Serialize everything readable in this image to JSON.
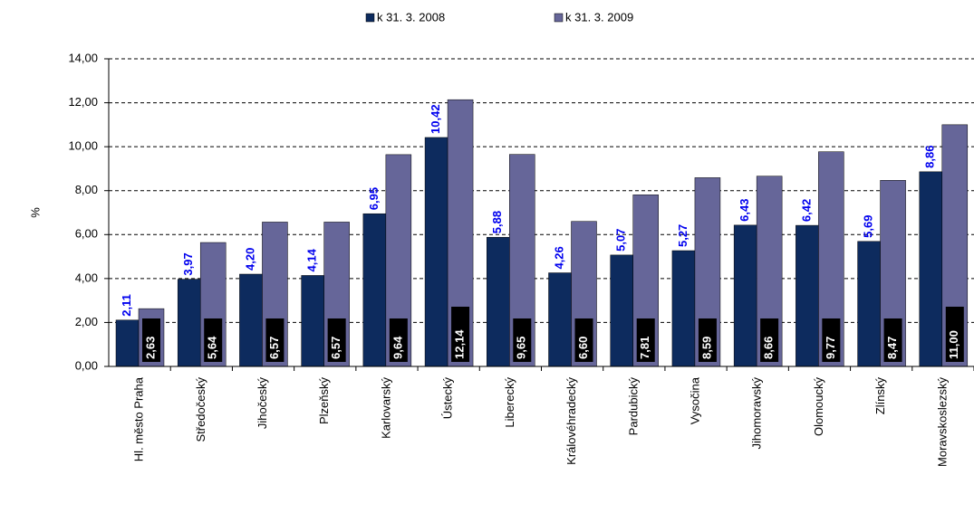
{
  "chart_data": {
    "type": "bar",
    "y_label": "%",
    "categories": [
      "Hl. město Praha",
      "Středočeský",
      "Jihočeský",
      "Plzeňský",
      "Karlovarský",
      "Ústecký",
      "Liberecký",
      "Královéhradecký",
      "Pardubický",
      "Vysočina",
      "Jihomoravský",
      "Olomoucký",
      "Zlínský",
      "Moravskoslezský"
    ],
    "series": [
      {
        "name": "k 31. 3. 2008",
        "color": "#0d2b5e",
        "values": [
          2.11,
          3.97,
          4.2,
          4.14,
          6.95,
          10.42,
          5.88,
          4.26,
          5.07,
          5.27,
          6.43,
          6.42,
          5.69,
          8.86
        ],
        "value_labels": [
          "2,11",
          "3,97",
          "4,20",
          "4,14",
          "6,95",
          "10,42",
          "5,88",
          "4,26",
          "5,07",
          "5,27",
          "6,43",
          "6,42",
          "5,69",
          "8,86"
        ]
      },
      {
        "name": "k 31. 3. 2009",
        "color": "#666699",
        "values": [
          2.63,
          5.64,
          6.57,
          6.57,
          9.64,
          12.14,
          9.65,
          6.6,
          7.81,
          8.59,
          8.66,
          9.77,
          8.47,
          11.0
        ],
        "value_labels": [
          "2,63",
          "5,64",
          "6,57",
          "6,57",
          "9,64",
          "12,14",
          "9,65",
          "6,60",
          "7,81",
          "8,59",
          "8,66",
          "9,77",
          "8,47",
          "11,00"
        ]
      }
    ],
    "ylim": [
      0,
      14
    ],
    "yticks": [
      {
        "value": 0,
        "label": "0,00"
      },
      {
        "value": 2,
        "label": "2,00"
      },
      {
        "value": 4,
        "label": "4,00"
      },
      {
        "value": 6,
        "label": "6,00"
      },
      {
        "value": 8,
        "label": "8,00"
      },
      {
        "value": 10,
        "label": "10,00"
      },
      {
        "value": 12,
        "label": "12,00"
      },
      {
        "value": 14,
        "label": "14,00"
      }
    ],
    "grid": true
  }
}
